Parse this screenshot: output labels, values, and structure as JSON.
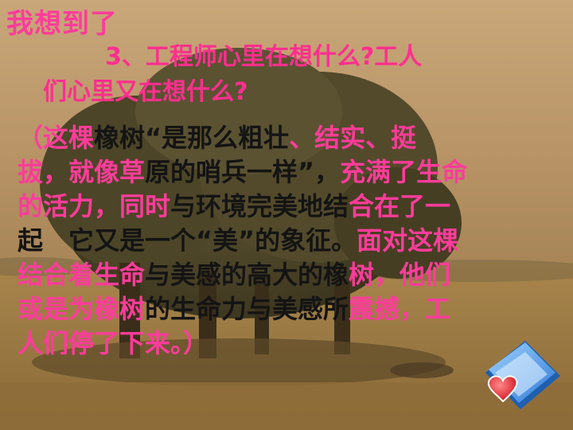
{
  "slide": {
    "heading": "我想到了",
    "question": {
      "line1": "3、工程师心里在想什么?工人",
      "line2": "们心里又在想什么?"
    },
    "answer_lines": [
      [
        {
          "t": "（这棵",
          "c": "pink"
        },
        {
          "t": "橡树“是那么粗壮",
          "c": "black"
        },
        {
          "t": "、结实、挺",
          "c": "pink"
        }
      ],
      [
        {
          "t": "拔，就像草",
          "c": "pink"
        },
        {
          "t": "原的哨兵一样”，",
          "c": "black"
        },
        {
          "t": "充满了生命",
          "c": "pink"
        }
      ],
      [
        {
          "t": "的活力，同时",
          "c": "pink"
        },
        {
          "t": "与环境完美地结",
          "c": "black"
        },
        {
          "t": "合在了一",
          "c": "pink"
        }
      ],
      [
        {
          "t": "起　它又是一个“美”的象征。",
          "c": "black"
        },
        {
          "t": "面对这棵",
          "c": "pink"
        }
      ],
      [
        {
          "t": "结合着生命",
          "c": "pink"
        },
        {
          "t": "与美感的高大的橡",
          "c": "black"
        },
        {
          "t": "树，他们",
          "c": "pink"
        }
      ],
      [
        {
          "t": "或是为橡树",
          "c": "pink"
        },
        {
          "t": "的生命力与美感所",
          "c": "black"
        },
        {
          "t": "震撼，工",
          "c": "pink"
        }
      ],
      [
        {
          "t": "人们停了下来。）",
          "c": "pink"
        }
      ]
    ],
    "colors": {
      "pink": "#ff3c9b",
      "black": "#141414"
    },
    "icon": "book-with-heart-icon"
  }
}
